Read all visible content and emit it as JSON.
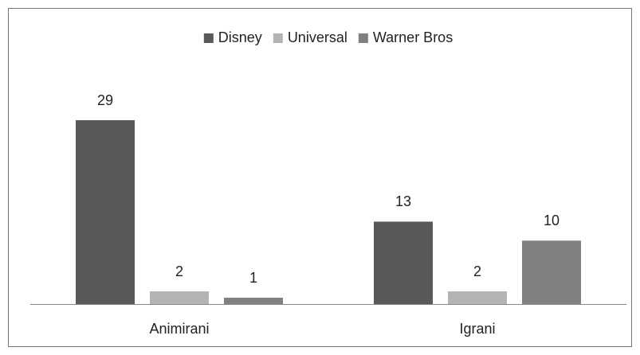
{
  "chart_data": {
    "type": "bar",
    "categories": [
      "Animirani",
      "Igrani"
    ],
    "series": [
      {
        "name": "Disney",
        "color": "#595959",
        "values": [
          29,
          13
        ]
      },
      {
        "name": "Universal",
        "color": "#b3b3b3",
        "values": [
          2,
          2
        ]
      },
      {
        "name": "Warner Bros",
        "color": "#808080",
        "values": [
          1,
          10
        ]
      }
    ],
    "legend": "top"
  }
}
